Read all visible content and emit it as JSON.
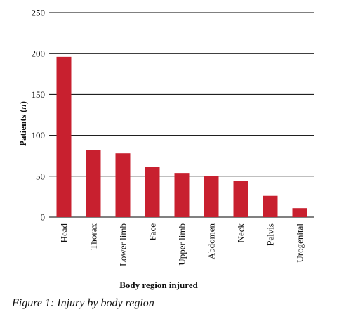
{
  "chart_data": {
    "type": "bar",
    "xlabel": "Body region injured",
    "ylabel": "Patients (",
    "ylabel_italic": "n",
    "ylabel_suffix": ")",
    "ylim": [
      0,
      250
    ],
    "yticks": [
      0,
      50,
      100,
      150,
      200,
      250
    ],
    "grid": true,
    "bar_color": "#c8202f",
    "categories": [
      "Head",
      "Thorax",
      "Lower limb",
      "Face",
      "Upper limb",
      "Abdomen",
      "Neck",
      "Pelvis",
      "Urogenital"
    ],
    "values": [
      196,
      82,
      78,
      61,
      54,
      50,
      44,
      26,
      11
    ]
  },
  "caption": "Figure 1: Injury by body region"
}
